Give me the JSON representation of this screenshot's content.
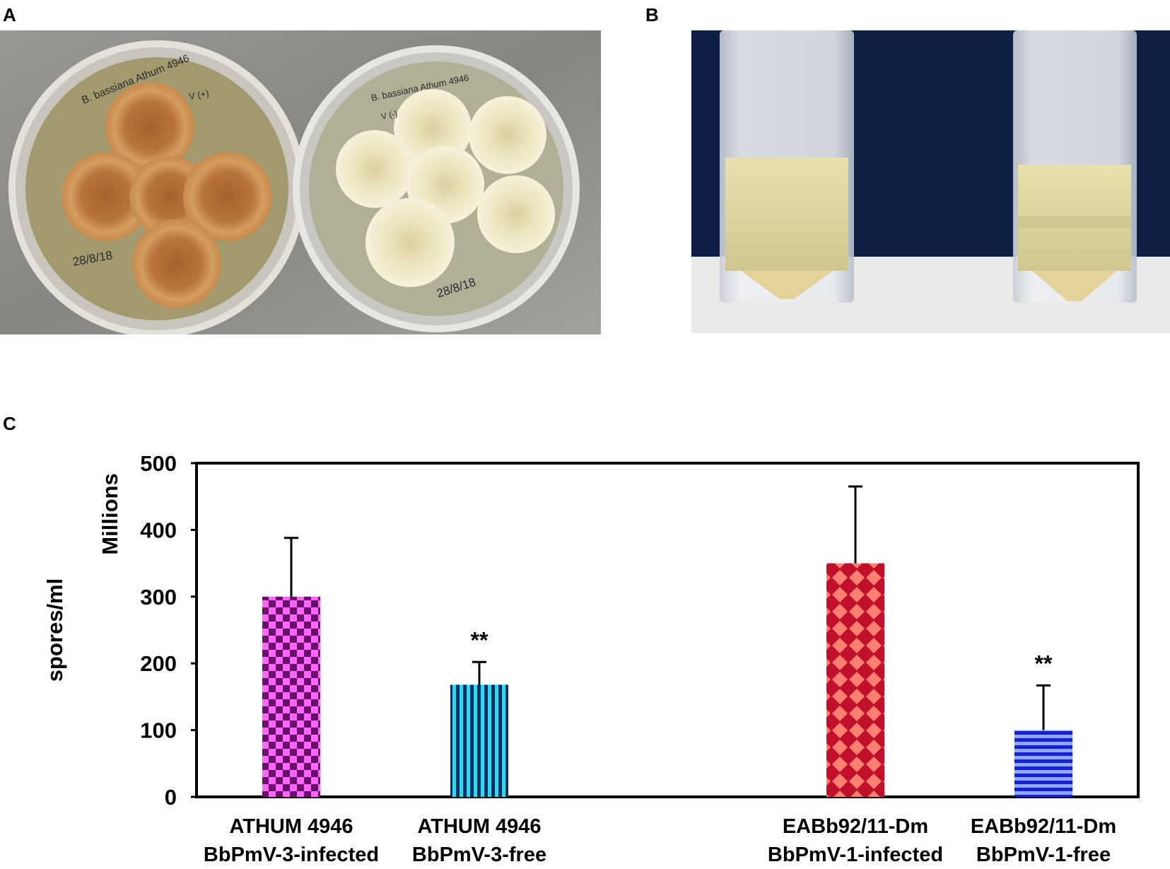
{
  "panels": {
    "a_label": "A",
    "b_label": "B",
    "c_label": "C"
  },
  "photo_a": {
    "left_plate_text": [
      "B. bassiana Athum 4946",
      "V (+)"
    ],
    "left_plate_date": "28/8/18",
    "right_plate_text": [
      "B. bassiana Athum 4946",
      "V (-)"
    ],
    "right_plate_date": "28/8/18",
    "colors": {
      "background": "#8e8c8a",
      "left_colony": "#c98f55",
      "right_colony": "#f1ebc9"
    }
  },
  "photo_b": {
    "colors": {
      "background": "#0f1f45",
      "liquid": "#ded7a0",
      "pellet": "#e8d9a0"
    }
  },
  "chart_data": {
    "type": "bar",
    "categories": [
      [
        "ATHUM 4946",
        "BbPmV-3-infected"
      ],
      [
        "ATHUM 4946",
        "BbPmV-3-free"
      ],
      [
        "EABb92/11-Dm",
        "BbPmV-1-infected"
      ],
      [
        "EABb92/11-Dm",
        "BbPmV-1-free"
      ]
    ],
    "values": [
      300,
      168,
      350,
      100
    ],
    "error_plus": [
      88,
      34,
      115,
      67
    ],
    "annotations": [
      "",
      "**",
      "",
      "**"
    ],
    "ylabel": "spores/ml",
    "yunit": "Millions",
    "ylim": [
      0,
      500
    ],
    "yticks": [
      0,
      100,
      200,
      300,
      400,
      500
    ],
    "grid": false,
    "patterns": [
      "checker",
      "vertical-stripes",
      "diamond",
      "horizontal-stripes"
    ],
    "colors": [
      {
        "fg": "#6a0f6a",
        "bg": "#ff66ff"
      },
      {
        "fg": "#0d2a60",
        "bg": "#33d6f0"
      },
      {
        "fg": "#c0102a",
        "bg": "#ff8070"
      },
      {
        "fg": "#1a1fd0",
        "bg": "#8eaaff"
      }
    ]
  }
}
